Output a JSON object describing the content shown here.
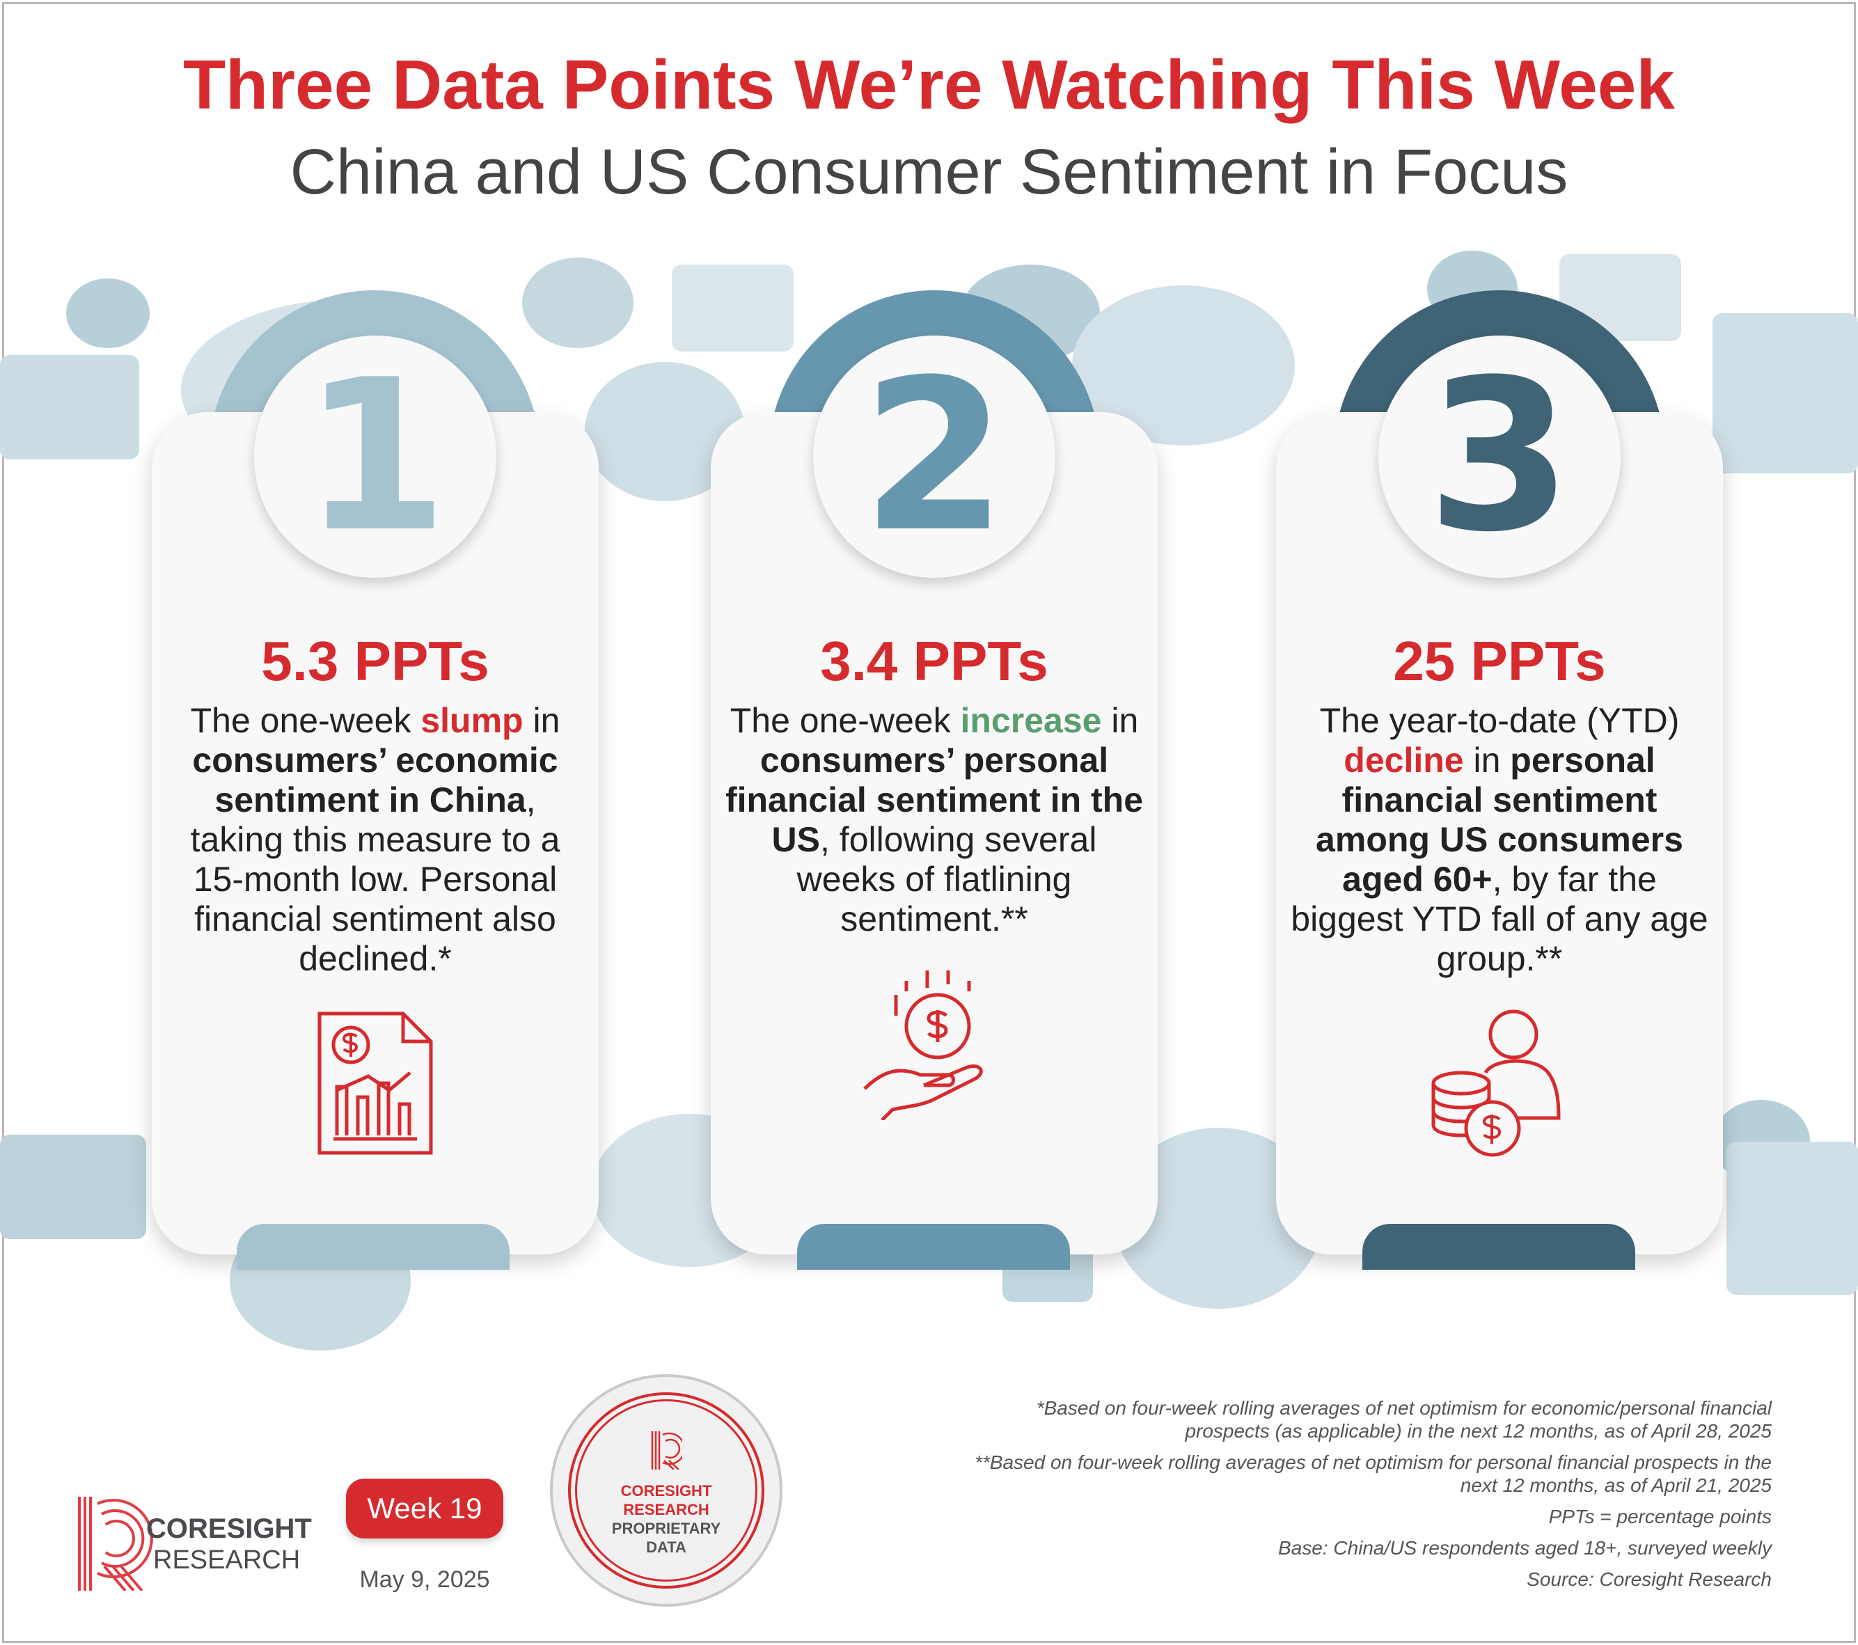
{
  "header": {
    "title": "Three Data Points We’re Watching This Week",
    "subtitle": "China and US Consumer Sentiment in Focus"
  },
  "colors": {
    "accent_red": "#d62b2e",
    "highlight_green": "#5a9e6f",
    "card1": "#a5c3cf",
    "card2": "#6797ae",
    "card3": "#3f6475"
  },
  "cards": [
    {
      "number": "1",
      "headline": "5.3 PPTs",
      "icon": "financial-report-icon",
      "parts": [
        "The one-week ",
        "slump",
        " in ",
        "consumers’ economic sentiment in China",
        ", taking this measure to a 15-month low. Personal financial sentiment also declined.*"
      ]
    },
    {
      "number": "2",
      "headline": "3.4 PPTs",
      "icon": "hand-dollar-coin-icon",
      "parts": [
        "The one-week ",
        "increase",
        " in ",
        "consumers’ personal financial sentiment in the US",
        ", following several weeks of flatlining sentiment.**"
      ]
    },
    {
      "number": "3",
      "headline": "25 PPTs",
      "icon": "person-coins-icon",
      "parts": [
        "The year-to-date (YTD) ",
        "decline",
        " in ",
        "personal financial sentiment among US consumers aged 60+",
        ", by far the biggest YTD fall of any age group.**"
      ]
    }
  ],
  "footer": {
    "logo": {
      "line1": "CORESIGHT",
      "line2": "RESEARCH"
    },
    "week": "Week 19",
    "date": "May 9, 2025",
    "badge": {
      "line1": "CORESIGHT",
      "line2": "RESEARCH",
      "line3": "PROPRIETARY",
      "line4": "DATA"
    },
    "notes": [
      "*Based on four-week rolling averages of net optimism for economic/personal financial prospects (as applicable) in the next 12 months, as of April 28, 2025",
      "**Based on four-week rolling averages of net optimism for personal financial prospects in the next 12 months, as of April 21, 2025",
      "PPTs = percentage points",
      "Base: China/US respondents aged 18+, surveyed weekly",
      "Source: Coresight Research"
    ]
  }
}
